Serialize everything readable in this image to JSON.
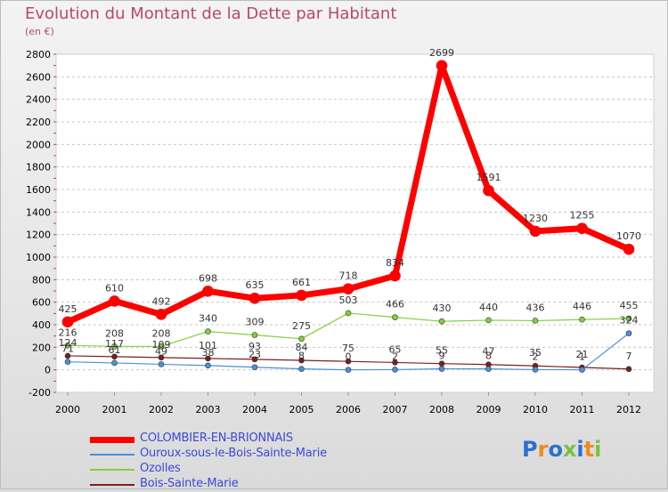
{
  "title": "Evolution du Montant de la Dette par Habitant",
  "unit": "(en €)",
  "logo": "Proxiti",
  "chart_data": {
    "type": "line",
    "categories": [
      "2000",
      "2001",
      "2002",
      "2003",
      "2004",
      "2005",
      "2006",
      "2007",
      "2008",
      "2009",
      "2010",
      "2011",
      "2012"
    ],
    "ylim": [
      -200,
      2800
    ],
    "yticks": [
      -200,
      0,
      200,
      400,
      600,
      800,
      1000,
      1200,
      1400,
      1600,
      1800,
      2000,
      2200,
      2400,
      2600,
      2800
    ],
    "grid": "horizontal dashed",
    "legend": "bottom-left",
    "series": [
      {
        "name": "COLOMBIER-EN-BRIONNAIS",
        "color": "#ff0000",
        "width": 7,
        "values": [
          425,
          610,
          492,
          698,
          635,
          661,
          718,
          834,
          2699,
          1591,
          1230,
          1255,
          1070
        ],
        "labels": [
          "425",
          "610",
          "492",
          "698",
          "635",
          "661",
          "718",
          "834",
          "2699",
          "1591",
          "1230",
          "1255",
          "1070"
        ]
      },
      {
        "name": "Ouroux-sous-le-Bois-Sainte-Marie",
        "color": "#4a90d9",
        "width": 1.2,
        "values": [
          71,
          61,
          49,
          38,
          23,
          8,
          0,
          2,
          9,
          8,
          2,
          1,
          324
        ],
        "labels": [
          "71",
          "61",
          "49",
          "38",
          "23",
          "8",
          "0",
          "2",
          "9",
          "8",
          "2",
          "1",
          "324"
        ]
      },
      {
        "name": "Ozolles",
        "color": "#7fd13b",
        "width": 1.2,
        "values": [
          216,
          208,
          208,
          340,
          309,
          275,
          503,
          466,
          430,
          440,
          436,
          446,
          455
        ],
        "labels": [
          "216",
          "208",
          "208",
          "340",
          "309",
          "275",
          "503",
          "466",
          "430",
          "440",
          "436",
          "446",
          "455"
        ]
      },
      {
        "name": "Bois-Sainte-Marie",
        "color": "#7a1f1f",
        "width": 1.2,
        "values": [
          124,
          117,
          109,
          101,
          93,
          84,
          75,
          65,
          55,
          47,
          35,
          21,
          7
        ],
        "labels": [
          "124",
          "117",
          "109",
          "101",
          "93",
          "84",
          "75",
          "65",
          "55",
          "47",
          "35",
          "21",
          "7"
        ]
      }
    ]
  }
}
